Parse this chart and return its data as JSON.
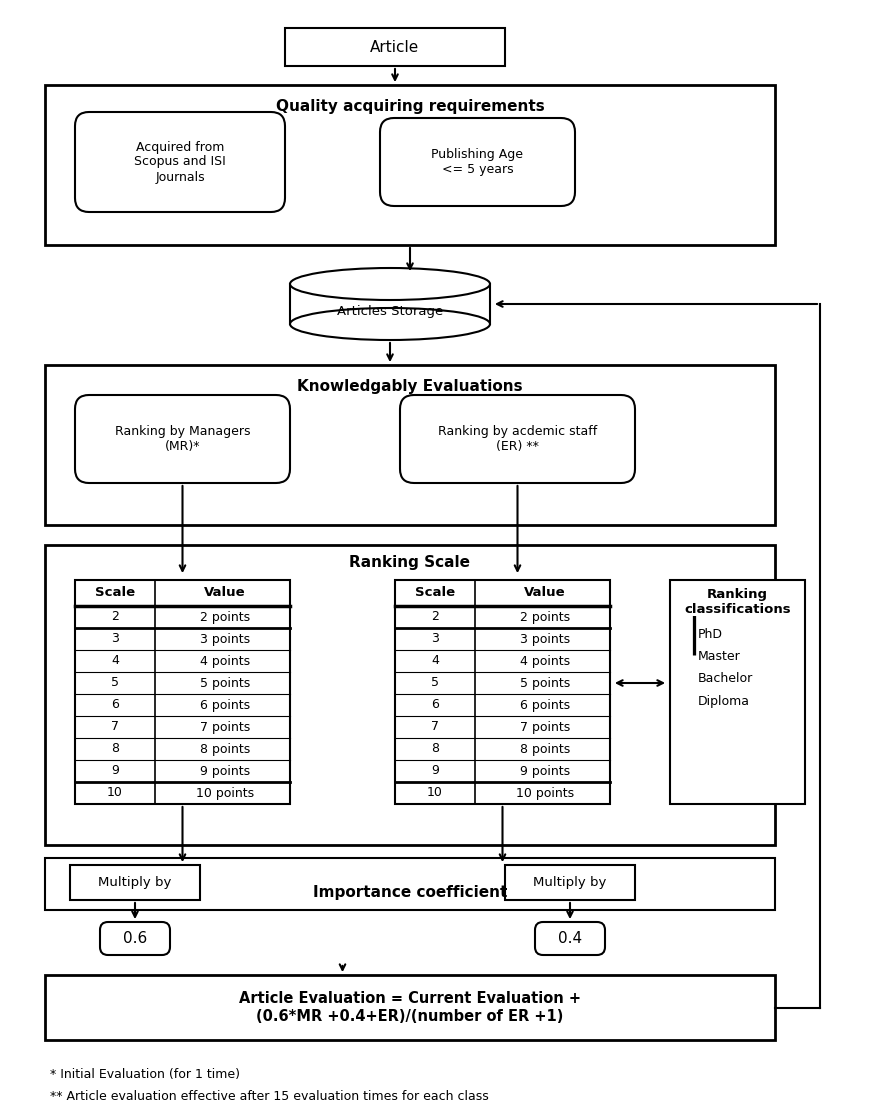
{
  "bg_color": "#ffffff",
  "text_color": "#000000",
  "title": "Article",
  "quality_box": "Quality acquiring requirements",
  "scopus_box": "Acquired from\nScopus and ISI\nJournals",
  "publishing_box": "Publishing Age\n<= 5 years",
  "storage_box": "Articles Storage",
  "knowledgably_box": "Knowledgably Evaluations",
  "ranking_mr_box": "Ranking by Managers\n(MR)*",
  "ranking_er_box": "Ranking by acdemic staff\n(ER) **",
  "ranking_scale_title": "Ranking Scale",
  "scale_values": [
    2,
    3,
    4,
    5,
    6,
    7,
    8,
    9,
    10
  ],
  "multiply_left": "Multiply by",
  "multiply_right": "Multiply by",
  "importance_coeff": "Importance coefficient",
  "coeff_left": "0.6",
  "coeff_right": "0.4",
  "formula_box": "Article Evaluation = Current Evaluation +\n(0.6*MR +0.4+ER)/(number of ER +1)",
  "ranking_class_title": "Ranking\nclassifications",
  "ranking_class_items": "PhD\nMaster\nBachelor\nDiploma",
  "footnote1": "* Initial Evaluation (for 1 time)",
  "footnote2": "** Article evaluation effective after 15 evaluation times for each class",
  "fig_w": 850,
  "fig_h": 1087
}
